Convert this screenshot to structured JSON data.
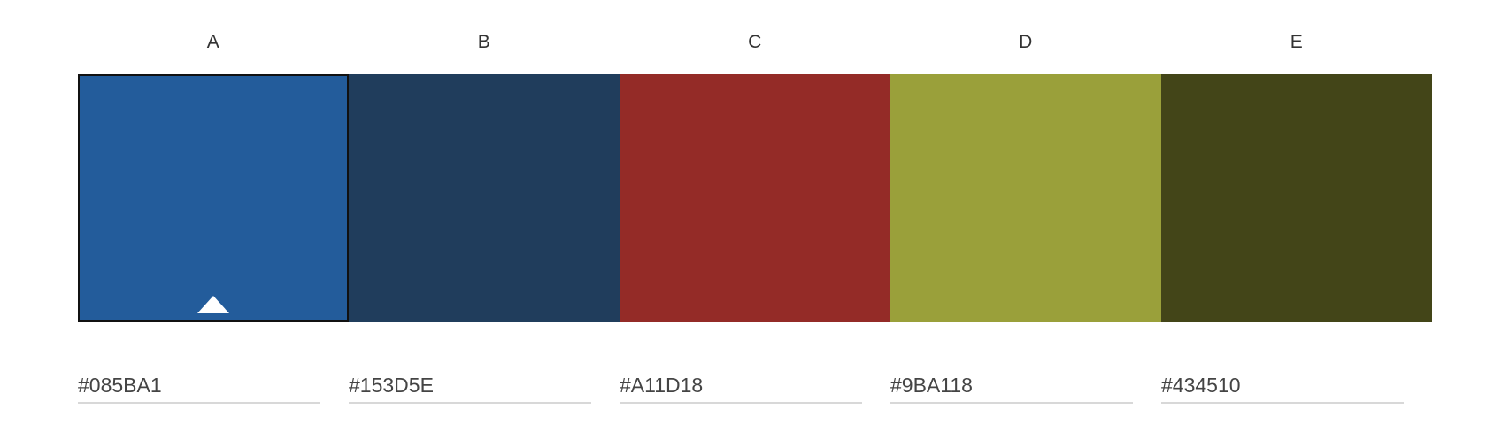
{
  "palette": {
    "selected_index": 0,
    "swatches": [
      {
        "label": "A",
        "hex": "#085BA1",
        "display_color": "#235C9B"
      },
      {
        "label": "B",
        "hex": "#153D5E",
        "display_color": "#203D5C"
      },
      {
        "label": "C",
        "hex": "#A11D18",
        "display_color": "#942B27"
      },
      {
        "label": "D",
        "hex": "#9BA118",
        "display_color": "#9AA03A"
      },
      {
        "label": "E",
        "hex": "#434510",
        "display_color": "#434518"
      }
    ]
  }
}
